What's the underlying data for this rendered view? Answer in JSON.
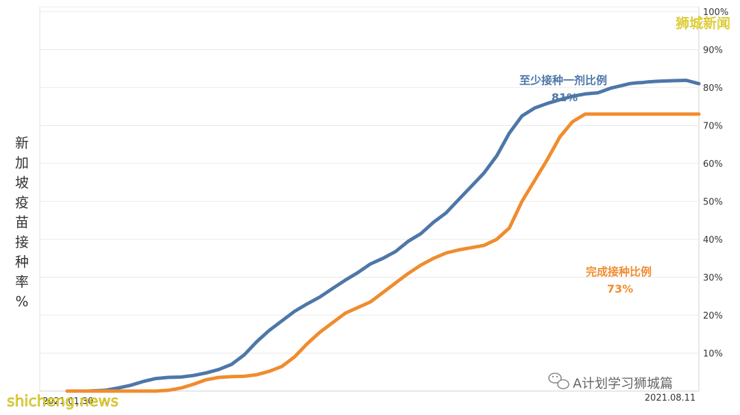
{
  "chart_data": {
    "type": "line",
    "ylabel": "新加坡疫苗接种率%",
    "yaxis_side": "right",
    "ylim": [
      0,
      100
    ],
    "yticks": [
      "10%",
      "20%",
      "30%",
      "40%",
      "50%",
      "60%",
      "70%",
      "80%",
      "90%",
      "100%"
    ],
    "ytick_values": [
      10,
      20,
      30,
      40,
      50,
      60,
      70,
      80,
      90,
      100
    ],
    "x_start_label": "2021.01.30",
    "x_end_label": "2021.08.11",
    "xlim": [
      0,
      100
    ],
    "grid": true,
    "series": [
      {
        "name": "至少接种一剂比例",
        "end_label": "81%",
        "color": "#4e77a8",
        "x": [
          0,
          3,
          6,
          8,
          10,
          12,
          14,
          16,
          18,
          20,
          22,
          24,
          26,
          28,
          30,
          32,
          34,
          36,
          38,
          40,
          42,
          44,
          46,
          48,
          50,
          52,
          54,
          56,
          58,
          60,
          62,
          64,
          66,
          68,
          70,
          72,
          74,
          76,
          78,
          80,
          82,
          84,
          86,
          88,
          89,
          90,
          91,
          92,
          93,
          94,
          96,
          98,
          100
        ],
        "values": [
          0,
          0,
          0.2,
          0.8,
          1.5,
          2.5,
          3.3,
          3.6,
          3.7,
          4.1,
          4.8,
          5.7,
          7,
          9.5,
          13,
          16,
          18.5,
          21,
          23,
          24.8,
          27,
          29.2,
          31.2,
          33.5,
          35,
          36.8,
          39.5,
          41.5,
          44.5,
          47,
          50.5,
          54,
          57.5,
          62,
          68,
          72.5,
          74.6,
          75.8,
          76.8,
          77.7,
          78.3,
          78.6,
          79.8,
          80.6,
          81.0,
          81.2,
          81.3,
          81.5,
          81.6,
          81.7,
          81.8,
          81.9,
          81.0
        ]
      },
      {
        "name": "完成接种比例",
        "end_label": "73%",
        "color": "#f08c2e",
        "x": [
          0,
          3,
          6,
          8,
          10,
          12,
          14,
          16,
          18,
          20,
          22,
          24,
          26,
          28,
          30,
          32,
          34,
          36,
          38,
          40,
          42,
          44,
          46,
          48,
          50,
          52,
          54,
          56,
          58,
          60,
          62,
          64,
          66,
          68,
          70,
          72,
          74,
          76,
          78,
          80,
          82,
          84,
          86,
          88,
          90,
          92,
          94,
          96,
          98,
          100
        ],
        "values": [
          0,
          0,
          0,
          0,
          0,
          0,
          0,
          0.2,
          0.8,
          1.8,
          3,
          3.6,
          3.8,
          3.9,
          4.3,
          5.2,
          6.5,
          9,
          12.5,
          15.5,
          18,
          20.5,
          22,
          23.5,
          26,
          28.5,
          31,
          33.2,
          35,
          36.4,
          37.2,
          37.8,
          38.4,
          40,
          43,
          50,
          55.5,
          61,
          67,
          71,
          73,
          73,
          73,
          73,
          73,
          73,
          73,
          73,
          73,
          73
        ]
      }
    ]
  },
  "annotations": {
    "dose1_title": "至少接种一剂比例",
    "dose1_value": "81%",
    "full_title": "完成接种比例",
    "full_value": "73%"
  },
  "brand": "狮城新闻",
  "watermark": "shicheng.news",
  "wechat_label": "A计划学习狮城篇",
  "colors": {
    "dose1": "#4e77a8",
    "full": "#f08c2e",
    "grid": "#e9e9e9",
    "brand": "#f5e21a"
  }
}
